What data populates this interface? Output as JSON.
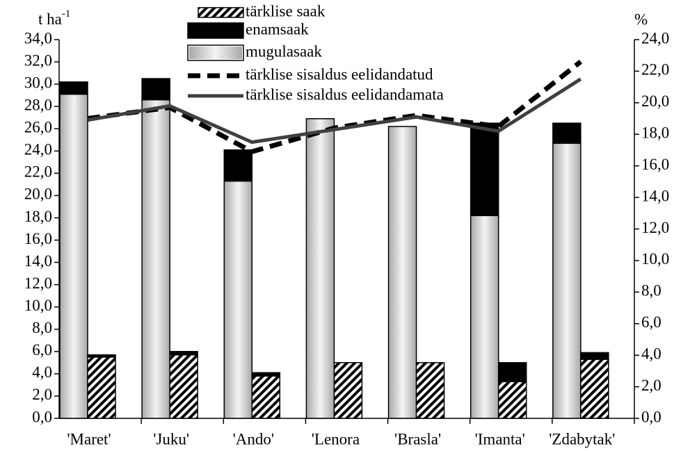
{
  "chart_data": {
    "type": "bar",
    "y_label": "t ha",
    "y_label_sup": "-1",
    "y2_label": "%",
    "categories": [
      "'Maret'",
      "'Juku'",
      "'Ando'",
      "'Lenora",
      "'Brasla'",
      "'Imanta'",
      "'Zdabytak'"
    ],
    "series": [
      {
        "name": "mugulasaak",
        "type": "bar",
        "stack": "tuber",
        "color": "#c8c8c8",
        "values": [
          29.1,
          28.6,
          21.3,
          26.9,
          26.2,
          18.2,
          24.7
        ]
      },
      {
        "name": "enamsaak",
        "type": "bar",
        "stack": "tuber",
        "color": "#000000",
        "values": [
          1.1,
          1.9,
          2.8,
          0,
          0,
          8.3,
          1.8
        ]
      },
      {
        "name": "tärklise saak",
        "type": "bar",
        "stack": "starch",
        "color": "#000000",
        "pattern": "hatch",
        "values": [
          5.5,
          5.7,
          3.8,
          5.0,
          5.0,
          3.3,
          5.3
        ]
      },
      {
        "type": "bar",
        "stack": "starch",
        "color": "#000000",
        "values": [
          0.2,
          0.3,
          0.3,
          0,
          0,
          1.7,
          0.6
        ]
      },
      {
        "name": "tärklise sisaldus eelidandatud",
        "type": "line",
        "axis": "y2",
        "color": "#000000",
        "dashed": true,
        "values": [
          19.0,
          19.7,
          16.9,
          18.4,
          19.2,
          18.5,
          22.6
        ]
      },
      {
        "name": "tärklise sisaldus eelidandamata",
        "type": "line",
        "axis": "y2",
        "color": "#404040",
        "values": [
          18.9,
          19.8,
          17.5,
          18.3,
          19.1,
          18.2,
          21.5
        ]
      }
    ],
    "ylim": [
      0,
      34
    ],
    "yticks": [
      {
        "value": 0,
        "label": "0,0"
      },
      {
        "value": 2,
        "label": "2,0"
      },
      {
        "value": 4,
        "label": "4,0"
      },
      {
        "value": 6,
        "label": "6,0"
      },
      {
        "value": 8,
        "label": "8,0"
      },
      {
        "value": 10,
        "label": "10,0"
      },
      {
        "value": 12,
        "label": "12,0"
      },
      {
        "value": 14,
        "label": "14,0"
      },
      {
        "value": 16,
        "label": "16,0"
      },
      {
        "value": 18,
        "label": "18,0"
      },
      {
        "value": 20,
        "label": "20,0"
      },
      {
        "value": 22,
        "label": "22,0"
      },
      {
        "value": 24,
        "label": "24,0"
      },
      {
        "value": 26,
        "label": "26,0"
      },
      {
        "value": 28,
        "label": "28,0"
      },
      {
        "value": 30,
        "label": "30,0"
      },
      {
        "value": 32,
        "label": "32,0"
      },
      {
        "value": 34,
        "label": "34,0"
      }
    ],
    "y2lim": [
      0,
      24
    ],
    "y2ticks": [
      {
        "value": 0,
        "label": "0,0"
      },
      {
        "value": 2,
        "label": "2,0"
      },
      {
        "value": 4,
        "label": "4,0"
      },
      {
        "value": 6,
        "label": "6,0"
      },
      {
        "value": 8,
        "label": "8,0"
      },
      {
        "value": 10,
        "label": "10,0"
      },
      {
        "value": 12,
        "label": "12,0"
      },
      {
        "value": 14,
        "label": "14,0"
      },
      {
        "value": 16,
        "label": "16,0"
      },
      {
        "value": 18,
        "label": "18,0"
      },
      {
        "value": 20,
        "label": "20,0"
      },
      {
        "value": 22,
        "label": "22,0"
      },
      {
        "value": 24,
        "label": "24,0"
      }
    ],
    "legend": "top"
  }
}
